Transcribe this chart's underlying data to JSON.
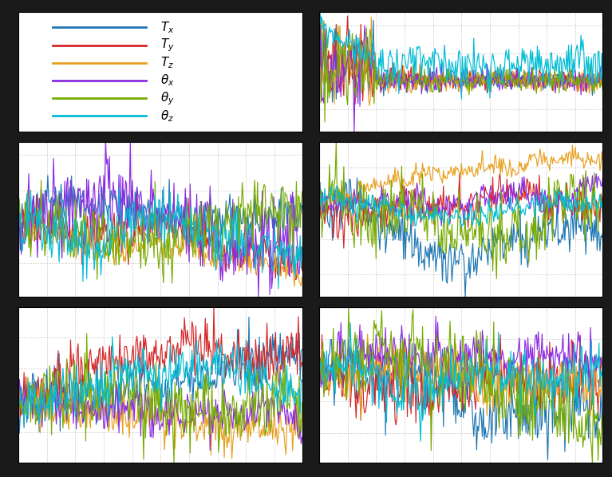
{
  "colors": [
    "#1f77b4",
    "#d62728",
    "#e8a020",
    "#8b2be2",
    "#77ab00",
    "#00bcd4"
  ],
  "legend_labels": [
    "$T_x$",
    "$T_y$",
    "$T_z$",
    "$\\theta_x$",
    "$\\theta_y$",
    "$\\theta_z$"
  ],
  "fig_bg": "#1a1a1a",
  "plot_bg": "#ffffff",
  "grid_color": "#aaaaaa",
  "n_points": 300
}
